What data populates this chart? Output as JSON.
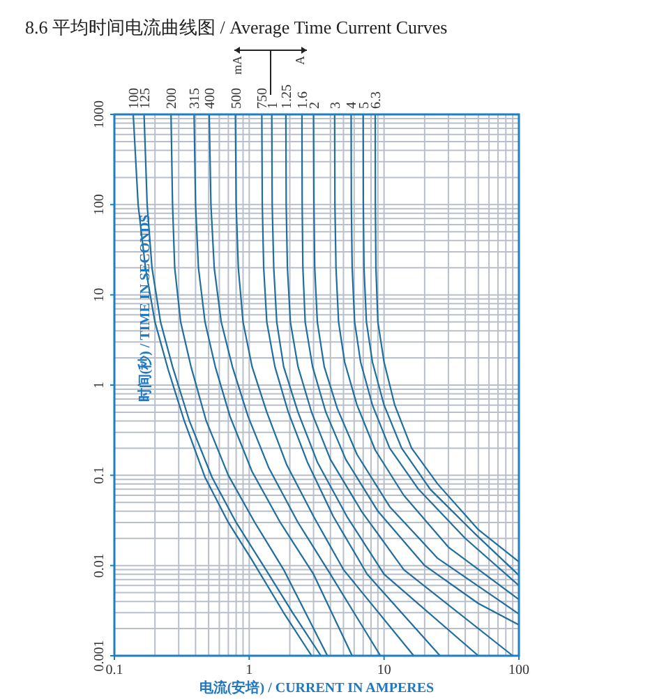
{
  "chart_data": {
    "type": "line",
    "title": "8.6 平均时间电流曲线图 / Average Time Current Curves",
    "xlabel": "电流(安培) / CURRENT IN AMPERES",
    "ylabel": "时间(秒) / TIME IN SECONDS",
    "log": "xy",
    "grid": true,
    "xlim": [
      0.1,
      100
    ],
    "ylim": [
      0.001,
      1000
    ],
    "xticks": [
      {
        "value": 0.1,
        "label": "0.1"
      },
      1,
      10,
      100
    ],
    "yticks": [
      {
        "value": 0.001,
        "label": "0.001"
      },
      {
        "value": 0.01,
        "label": "0.01"
      },
      {
        "value": 0.1,
        "label": "0.1"
      },
      1,
      10,
      100,
      1000
    ],
    "annotations": [
      "mA",
      "A"
    ],
    "series": [
      {
        "name": "100",
        "color": "#1f6e9e",
        "x": [
          0.138,
          0.15,
          0.17,
          0.2,
          0.25,
          0.33,
          0.47,
          0.7,
          1.03,
          1.8,
          2.9
        ],
        "values": [
          1000,
          100,
          20,
          5,
          1.5,
          0.4,
          0.095,
          0.03,
          0.012,
          0.003,
          0.001
        ]
      },
      {
        "name": "125",
        "color": "#1f6e9e",
        "x": [
          0.166,
          0.175,
          0.19,
          0.22,
          0.27,
          0.36,
          0.53,
          0.8,
          1.3,
          2.1,
          3.4
        ],
        "values": [
          1000,
          100,
          20,
          5,
          1.6,
          0.4,
          0.095,
          0.03,
          0.0095,
          0.003,
          0.001
        ]
      },
      {
        "name": "200",
        "color": "#1f6e9e",
        "x": [
          0.263,
          0.27,
          0.28,
          0.31,
          0.37,
          0.48,
          0.7,
          1.1,
          1.8,
          3.8
        ],
        "values": [
          1000,
          100,
          20,
          5,
          1.6,
          0.4,
          0.1,
          0.03,
          0.009,
          0.001
        ]
      },
      {
        "name": "315",
        "color": "#1f6e9e",
        "x": [
          0.39,
          0.4,
          0.42,
          0.47,
          0.56,
          0.72,
          1.05,
          1.7,
          3,
          5.8
        ],
        "values": [
          1000,
          100,
          20,
          5,
          1.6,
          0.45,
          0.11,
          0.03,
          0.008,
          0.001
        ]
      },
      {
        "name": "400",
        "color": "#1f6e9e",
        "x": [
          0.505,
          0.52,
          0.55,
          0.62,
          0.75,
          0.98,
          1.4,
          2.3,
          4,
          9.4
        ],
        "values": [
          1000,
          100,
          20,
          5,
          1.6,
          0.45,
          0.12,
          0.03,
          0.008,
          0.001
        ]
      },
      {
        "name": "500",
        "color": "#1f6e9e",
        "x": [
          0.79,
          0.8,
          0.83,
          0.9,
          1.05,
          1.35,
          1.9,
          3,
          5,
          16.6
        ],
        "values": [
          1000,
          100,
          20,
          5,
          1.6,
          0.5,
          0.13,
          0.035,
          0.009,
          0.001
        ]
      },
      {
        "name": "750",
        "color": "#1f6e9e",
        "x": [
          1.24,
          1.25,
          1.28,
          1.35,
          1.55,
          1.95,
          2.7,
          4.2,
          7.5,
          26
        ],
        "values": [
          1000,
          100,
          20,
          5,
          1.6,
          0.5,
          0.14,
          0.035,
          0.008,
          0.001
        ]
      },
      {
        "name": "1",
        "color": "#1f6e9e",
        "x": [
          1.47,
          1.48,
          1.52,
          1.6,
          1.8,
          2.3,
          3.2,
          5.3,
          10,
          50
        ],
        "values": [
          1000,
          100,
          20,
          5,
          1.6,
          0.5,
          0.14,
          0.035,
          0.008,
          0.001
        ]
      },
      {
        "name": "1.25",
        "color": "#1f6e9e",
        "x": [
          1.87,
          1.88,
          1.92,
          2.02,
          2.3,
          2.9,
          4,
          6.8,
          14,
          90
        ],
        "values": [
          1000,
          100,
          20,
          5,
          1.6,
          0.5,
          0.15,
          0.04,
          0.009,
          0.001
        ]
      },
      {
        "name": "1.6",
        "color": "#1f6e9e",
        "x": [
          2.46,
          2.47,
          2.5,
          2.6,
          2.95,
          3.7,
          5.2,
          9,
          20,
          50,
          100
        ],
        "values": [
          1000,
          100,
          20,
          5,
          1.6,
          0.5,
          0.15,
          0.04,
          0.01,
          0.0038,
          0.0022
        ]
      },
      {
        "name": "2",
        "color": "#1f6e9e",
        "x": [
          3,
          3.02,
          3.06,
          3.2,
          3.6,
          4.5,
          6.3,
          11,
          25,
          100
        ],
        "values": [
          1000,
          100,
          20,
          5,
          1.6,
          0.55,
          0.17,
          0.045,
          0.012,
          0.0029
        ]
      },
      {
        "name": "3",
        "color": "#1f6e9e",
        "x": [
          4.3,
          4.32,
          4.4,
          4.6,
          5.1,
          6.3,
          8.6,
          14,
          30,
          100
        ],
        "values": [
          1000,
          100,
          20,
          5,
          1.8,
          0.6,
          0.19,
          0.06,
          0.016,
          0.0042
        ]
      },
      {
        "name": "4",
        "color": "#1f6e9e",
        "x": [
          5.7,
          5.72,
          5.8,
          6.05,
          6.7,
          8.2,
          11,
          18,
          40,
          100
        ],
        "values": [
          1000,
          100,
          20,
          5,
          1.8,
          0.6,
          0.2,
          0.07,
          0.02,
          0.006
        ]
      },
      {
        "name": "5",
        "color": "#1f6e9e",
        "x": [
          7,
          7.02,
          7.1,
          7.4,
          8.2,
          10,
          13.5,
          22,
          48,
          100
        ],
        "values": [
          1000,
          100,
          20,
          5,
          1.8,
          0.6,
          0.2,
          0.07,
          0.022,
          0.0078
        ]
      },
      {
        "name": "6.3",
        "color": "#1f6e9e",
        "x": [
          8.6,
          8.62,
          8.7,
          9,
          10,
          12,
          16,
          25,
          50,
          100
        ],
        "values": [
          1000,
          100,
          20,
          5,
          1.8,
          0.6,
          0.2,
          0.08,
          0.025,
          0.011
        ]
      }
    ]
  }
}
